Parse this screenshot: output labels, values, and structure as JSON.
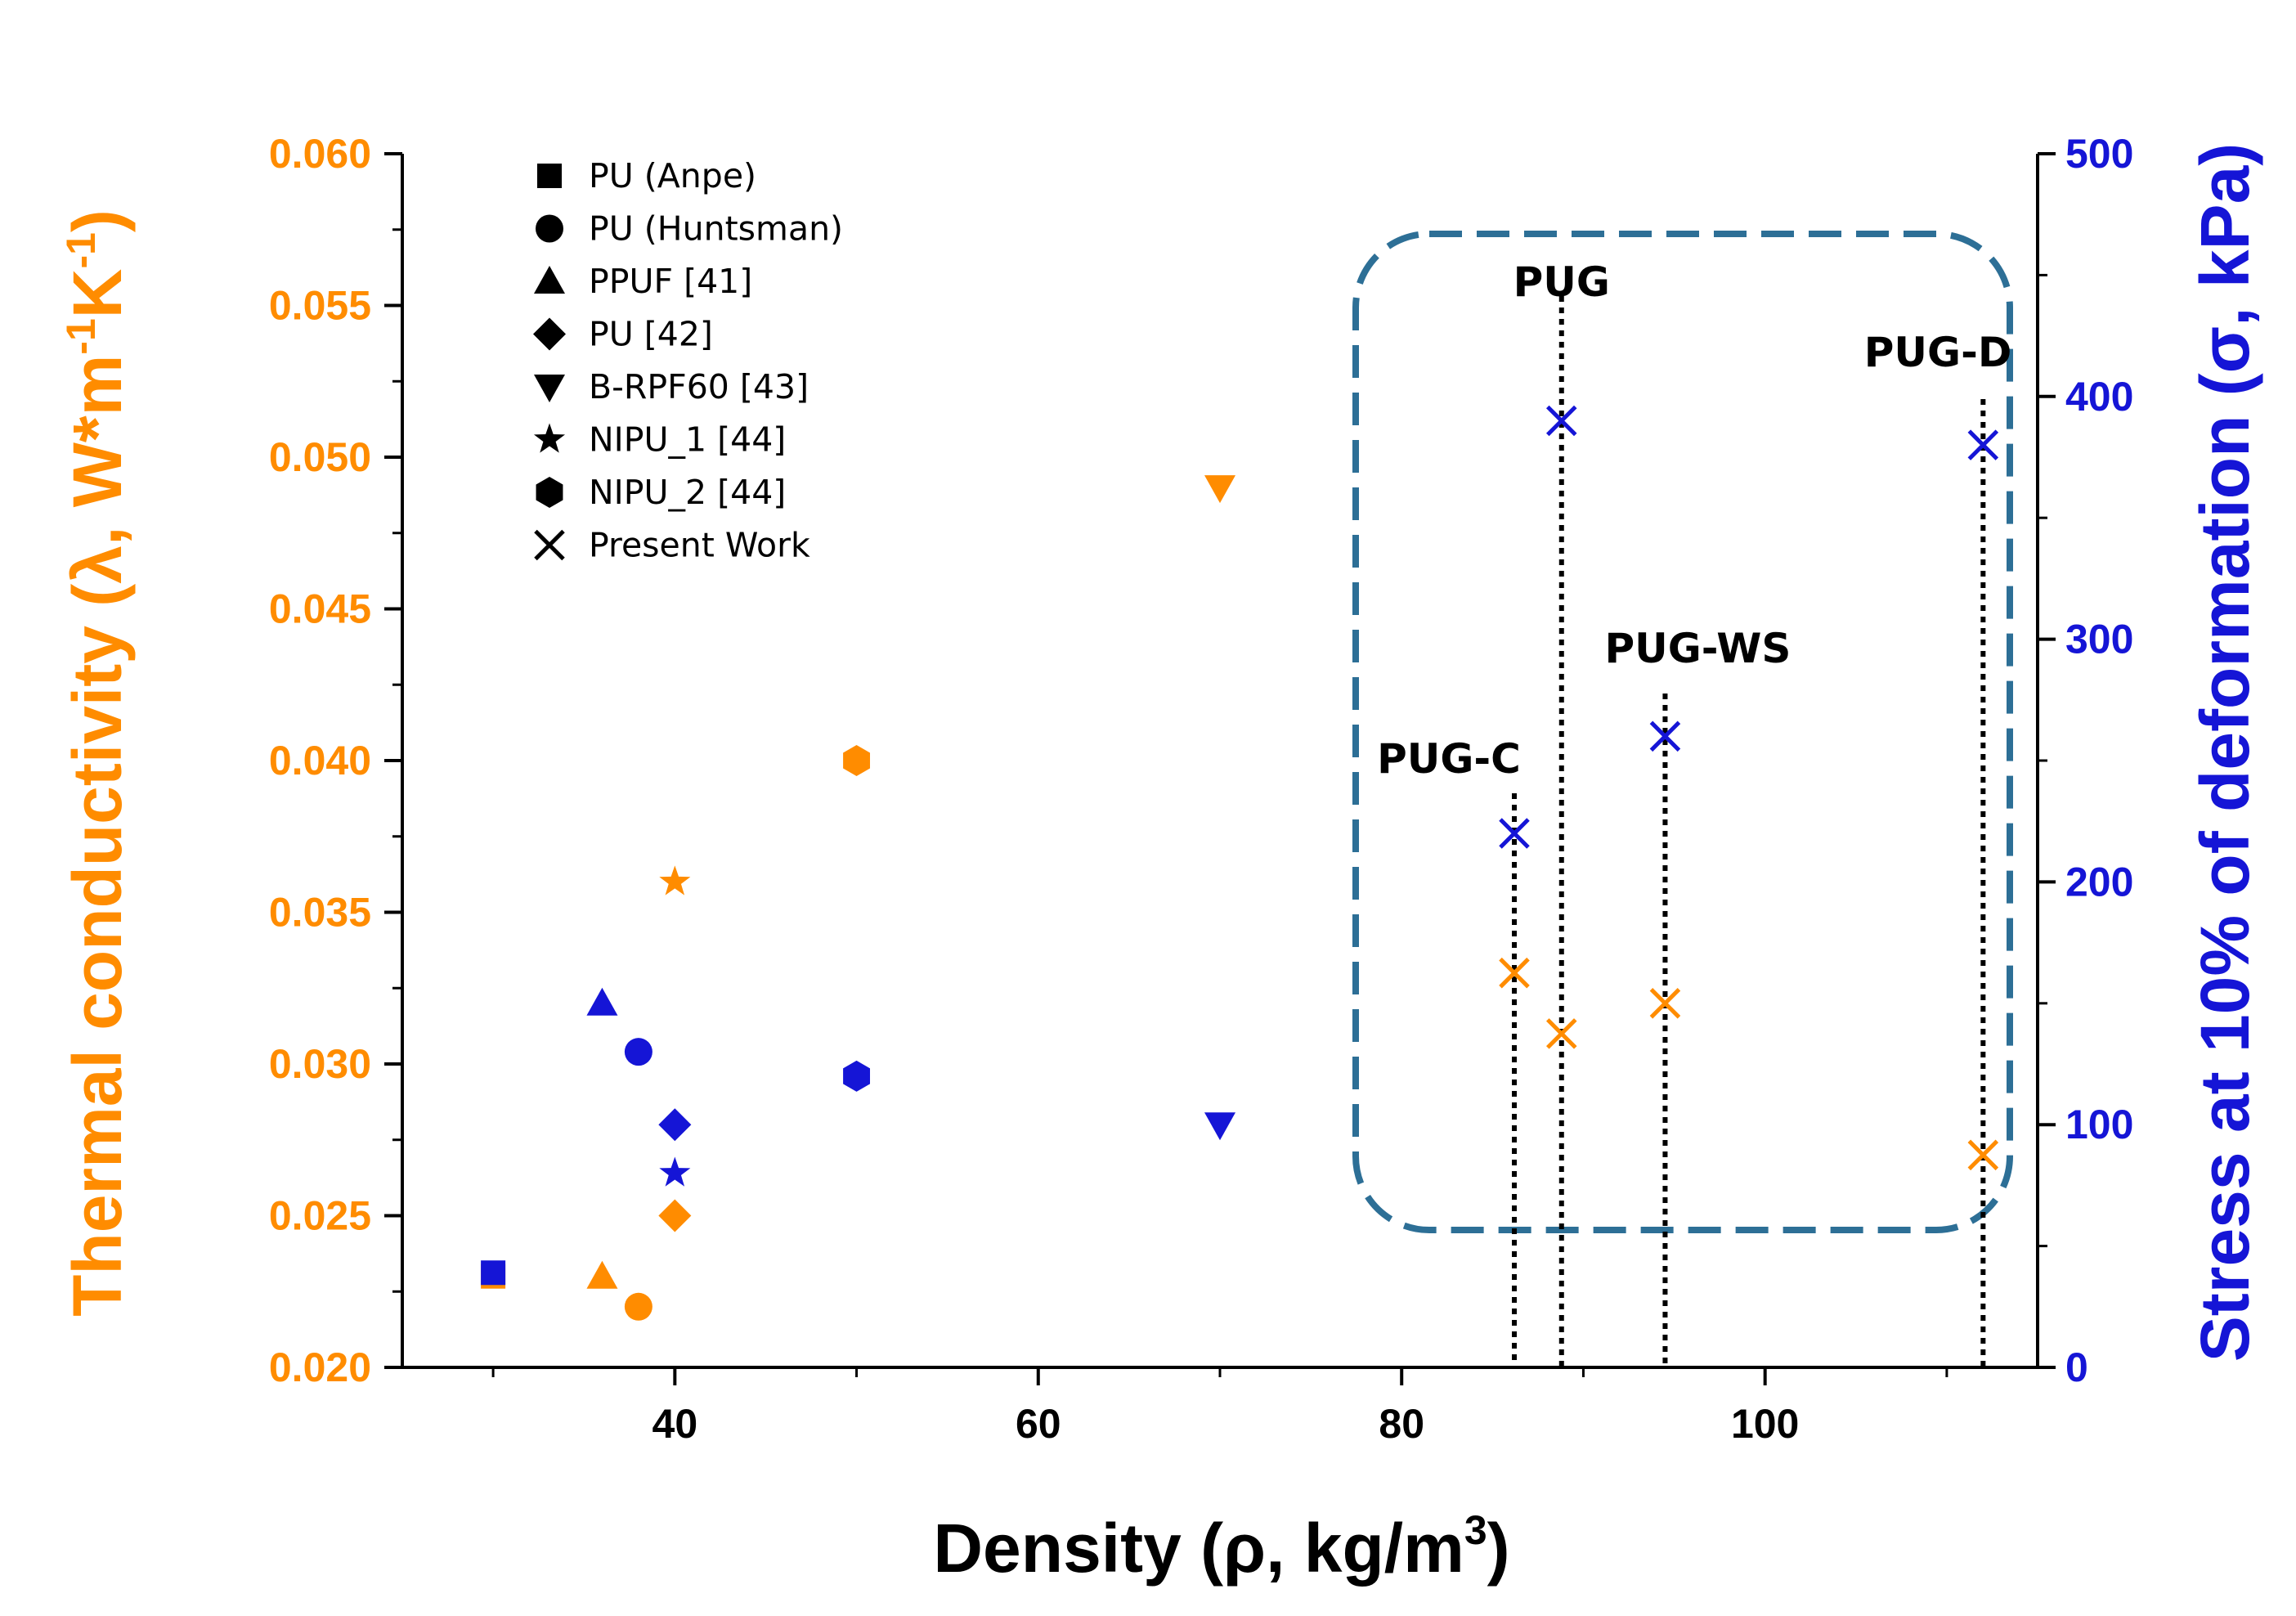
{
  "chart_data": {
    "type": "scatter",
    "xlabel": "Density (ρ, kg/m",
    "xlabel_sup": "3",
    "xlabel_end": ")",
    "ylabel_left_parts": [
      "Thermal conductivity (λ, W*m",
      "-1",
      "K",
      "-1",
      ")"
    ],
    "ylabel_right": "Stress at 10% of deformation (σ, kPa)",
    "xlim": [
      25,
      115
    ],
    "ylim_left": [
      0.02,
      0.06
    ],
    "ylim_right": [
      0,
      500
    ],
    "x_ticks": [
      40,
      60,
      80,
      100
    ],
    "x_tick_labels": [
      "40",
      "60",
      "80",
      "100"
    ],
    "y_left_ticks": [
      0.02,
      0.025,
      0.03,
      0.035,
      0.04,
      0.045,
      0.05,
      0.055,
      0.06
    ],
    "y_left_tick_labels": [
      "0.020",
      "0.025",
      "0.030",
      "0.035",
      "0.040",
      "0.045",
      "0.050",
      "0.055",
      "0.060"
    ],
    "y_right_ticks": [
      0,
      100,
      200,
      300,
      400,
      500
    ],
    "y_right_tick_labels": [
      "0",
      "100",
      "200",
      "300",
      "400",
      "500"
    ],
    "colors": {
      "thermal": "#ff8c00",
      "stress": "#1515d6",
      "box": "#2d6f96",
      "axis": "#000000"
    },
    "legend": [
      {
        "label": "PU (Anpe)",
        "marker": "square"
      },
      {
        "label": "PU (Huntsman)",
        "marker": "circle"
      },
      {
        "label": "PPUF [41]",
        "marker": "triangle-up"
      },
      {
        "label": "PU [42]",
        "marker": "diamond"
      },
      {
        "label": "B-RPF60 [43]",
        "marker": "triangle-down"
      },
      {
        "label": "NIPU_1 [44]",
        "marker": "star"
      },
      {
        "label": "NIPU_2 [44]",
        "marker": "hexagon"
      },
      {
        "label": "Present Work",
        "marker": "x"
      }
    ],
    "series": [
      {
        "name": "PU (Anpe)",
        "marker": "square",
        "density": 30,
        "thermal_conductivity": 0.023,
        "stress": 39
      },
      {
        "name": "PU (Huntsman)",
        "marker": "circle",
        "density": 38,
        "thermal_conductivity": 0.022,
        "stress": 130
      },
      {
        "name": "PPUF [41]",
        "marker": "triangle-up",
        "density": 36,
        "thermal_conductivity": 0.023,
        "stress": 150
      },
      {
        "name": "PU [42]",
        "marker": "diamond",
        "density": 40,
        "thermal_conductivity": 0.025,
        "stress": 100
      },
      {
        "name": "B-RPF60 [43]",
        "marker": "triangle-down",
        "density": 70,
        "thermal_conductivity": 0.049,
        "stress": 100
      },
      {
        "name": "NIPU_1 [44]",
        "marker": "star",
        "density": 40,
        "thermal_conductivity": 0.036,
        "stress": 80
      },
      {
        "name": "NIPU_2 [44]",
        "marker": "hexagon",
        "density": 50,
        "thermal_conductivity": 0.04,
        "stress": 120
      },
      {
        "name": "PUG-C",
        "marker": "x",
        "density": 86.2,
        "thermal_conductivity": 0.033,
        "stress": 220
      },
      {
        "name": "PUG",
        "marker": "x",
        "density": 88.8,
        "thermal_conductivity": 0.031,
        "stress": 390
      },
      {
        "name": "PUG-WS",
        "marker": "x",
        "density": 94.5,
        "thermal_conductivity": 0.032,
        "stress": 260
      },
      {
        "name": "PUG-D",
        "marker": "x",
        "density": 112.0,
        "thermal_conductivity": 0.027,
        "stress": 380
      }
    ],
    "annotations": [
      {
        "label": "PUG-C",
        "density": 86.2
      },
      {
        "label": "PUG",
        "density": 88.8
      },
      {
        "label": "PUG-WS",
        "density": 94.5
      },
      {
        "label": "PUG-D",
        "density": 112.0
      }
    ]
  }
}
